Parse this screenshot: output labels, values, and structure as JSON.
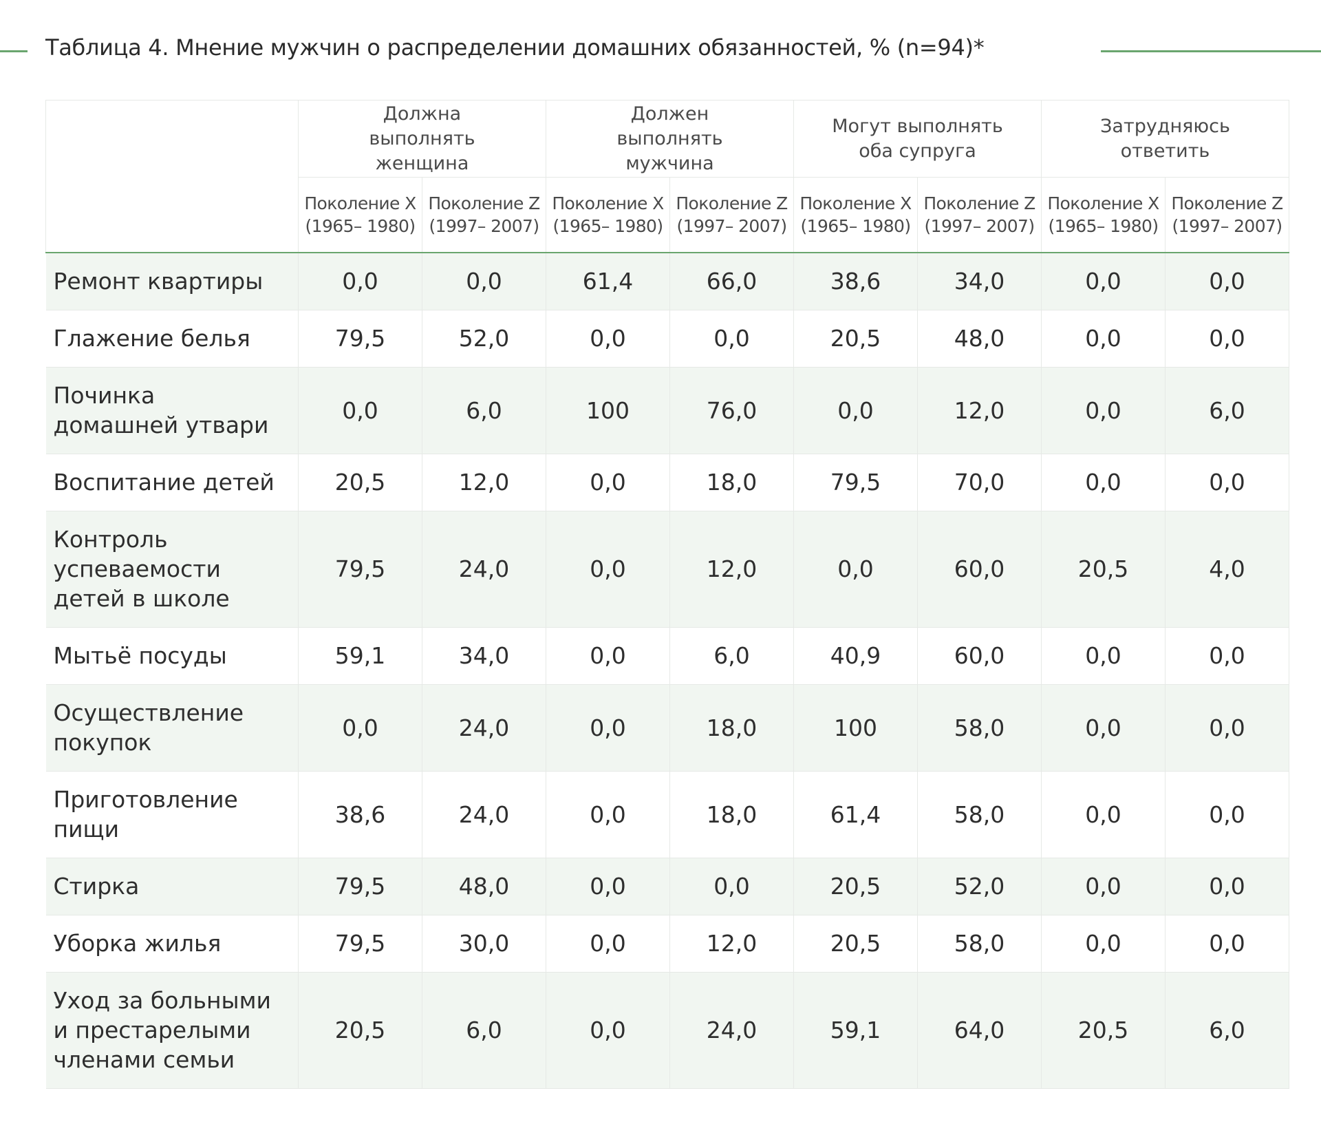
{
  "title": "Таблица 4. Мнение мужчин о распределении домашних обязанностей, % (n=94)*",
  "groups": [
    {
      "label": "Должна выполнять женщина"
    },
    {
      "label": "Должен выполнять мужчина"
    },
    {
      "label": "Могут выполнять оба супруга"
    },
    {
      "label": "Затрудняюсь ответить"
    }
  ],
  "subheaders": [
    {
      "name": "Поколение X",
      "years": "(1965– 1980)"
    },
    {
      "name": "Поколение Z",
      "years": "(1997– 2007)"
    },
    {
      "name": "Поколение X",
      "years": "(1965– 1980)"
    },
    {
      "name": "Поколение Z",
      "years": "(1997– 2007)"
    },
    {
      "name": "Поколение X",
      "years": "(1965– 1980)"
    },
    {
      "name": "Поколение Z",
      "years": "(1997– 2007)"
    },
    {
      "name": "Поколение X",
      "years": "(1965– 1980)"
    },
    {
      "name": "Поколение Z",
      "years": "(1997– 2007)"
    }
  ],
  "rows": [
    {
      "label": "Ремонт квартиры",
      "values": [
        "0,0",
        "0,0",
        "61,4",
        "66,0",
        "38,6",
        "34,0",
        "0,0",
        "0,0"
      ]
    },
    {
      "label": "Глажение белья",
      "values": [
        "79,5",
        "52,0",
        "0,0",
        "0,0",
        "20,5",
        "48,0",
        "0,0",
        "0,0"
      ]
    },
    {
      "label": "Починка домашней утвари",
      "values": [
        "0,0",
        "6,0",
        "100",
        "76,0",
        "0,0",
        "12,0",
        "0,0",
        "6,0"
      ]
    },
    {
      "label": "Воспитание детей",
      "values": [
        "20,5",
        "12,0",
        "0,0",
        "18,0",
        "79,5",
        "70,0",
        "0,0",
        "0,0"
      ]
    },
    {
      "label": "Контроль успеваемости детей в школе",
      "values": [
        "79,5",
        "24,0",
        "0,0",
        "12,0",
        "0,0",
        "60,0",
        "20,5",
        "4,0"
      ]
    },
    {
      "label": "Мытьё посуды",
      "values": [
        "59,1",
        "34,0",
        "0,0",
        "6,0",
        "40,9",
        "60,0",
        "0,0",
        "0,0"
      ]
    },
    {
      "label": "Осуществление покупок",
      "values": [
        "0,0",
        "24,0",
        "0,0",
        "18,0",
        "100",
        "58,0",
        "0,0",
        "0,0"
      ]
    },
    {
      "label": "Приготовление пищи",
      "values": [
        "38,6",
        "24,0",
        "0,0",
        "18,0",
        "61,4",
        "58,0",
        "0,0",
        "0,0"
      ]
    },
    {
      "label": "Стирка",
      "values": [
        "79,5",
        "48,0",
        "0,0",
        "0,0",
        "20,5",
        "52,0",
        "0,0",
        "0,0"
      ]
    },
    {
      "label": "Уборка жилья",
      "values": [
        "79,5",
        "30,0",
        "0,0",
        "12,0",
        "20,5",
        "58,0",
        "0,0",
        "0,0"
      ]
    },
    {
      "label": "Уход за больными и престарелыми членами семьи",
      "values": [
        "20,5",
        "6,0",
        "0,0",
        "24,0",
        "59,1",
        "64,0",
        "20,5",
        "6,0"
      ]
    }
  ],
  "colors": {
    "accent_line": "#6aa56e",
    "row_alt_bg": "#f1f6f1",
    "grid_line": "#e6e9e6"
  }
}
